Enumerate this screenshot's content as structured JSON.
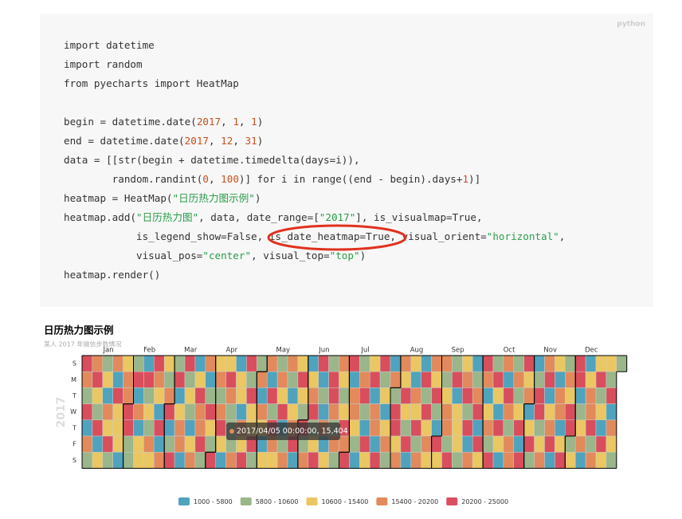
{
  "code": {
    "language": "python",
    "blocks": [
      [
        "import datetime",
        "import random",
        "from pyecharts import HeatMap"
      ],
      [
        "begin = datetime.date(2017, 1, 1)",
        "end = datetime.date(2017, 12, 31)",
        "data = [[str(begin + datetime.timedelta(days=i)),",
        "        random.randint(0, 100)] for i in range((end - begin).days+1)]",
        "heatmap = HeatMap(\"日历热力图示例\")",
        "heatmap.add(\"日历热力图\", data, date_range=[\"2017\"], is_visualmap=True,",
        "            is_legend_show=False, is_date_heatmap=True, visual_orient=\"horizontal\",",
        "            visual_pos=\"center\", visual_top=\"top\")",
        "heatmap.render()"
      ]
    ]
  },
  "chart_data": {
    "type": "calendar-heatmap",
    "title": "日历热力图示例",
    "subtitle": "某人 2017 年微信步数情况",
    "year_label": "2017",
    "months": [
      "Jan",
      "Feb",
      "Mar",
      "Apr",
      "May",
      "Jun",
      "Jul",
      "Aug",
      "Sep",
      "Oct",
      "Nov",
      "Dec"
    ],
    "days": [
      "S",
      "M",
      "T",
      "W",
      "T",
      "F",
      "S"
    ],
    "tooltip": "2017/04/05 00:00:00, 15,404",
    "pieces": [
      {
        "label": "1000 - 5800",
        "min": 1000,
        "max": 5800,
        "color": "#4fa3bd"
      },
      {
        "label": "5800 - 10600",
        "min": 5800,
        "max": 10600,
        "color": "#9ab68a"
      },
      {
        "label": "10600 - 15400",
        "min": 10600,
        "max": 15400,
        "color": "#eac763"
      },
      {
        "label": "15400 - 20200",
        "min": 15400,
        "max": 20200,
        "color": "#e28a5c"
      },
      {
        "label": "20200 - 25000",
        "min": 20200,
        "max": 25000,
        "color": "#d94e5d"
      }
    ],
    "values": [
      21840,
      19230,
      9120,
      23410,
      4230,
      16220,
      8710,
      18420,
      22310,
      13750,
      8230,
      22930,
      3550,
      12610,
      6540,
      11250,
      2450,
      19870,
      13480,
      24120,
      7520,
      17910,
      5240,
      20340,
      10830,
      12840,
      13960,
      2890,
      12320,
      15480,
      16890,
      21350,
      21220,
      9670,
      6110,
      9250,
      20990,
      3770,
      15530,
      4860,
      14370,
      11710,
      3110,
      22150,
      8460,
      11970,
      7390,
      16830,
      13020,
      20660,
      18720,
      12230,
      4230,
      24440,
      2480,
      20180,
      13490,
      6370,
      17110,
      21780,
      3680,
      8930,
      23860,
      10210,
      24620,
      4980,
      13320,
      18790,
      19540,
      5180,
      23470,
      9640,
      14850,
      7680,
      2190,
      11480,
      17320,
      4790,
      13980,
      22060,
      17450,
      19210,
      20760,
      10470,
      18110,
      3240,
      9890,
      20520,
      14590,
      6840,
      22950,
      11760,
      16020,
      7240,
      15404,
      23330,
      12920,
      3650,
      14680,
      21490,
      19020,
      10520,
      5910,
      8160,
      16570,
      2730,
      12680,
      11430,
      3970,
      19660,
      14230,
      21040,
      22510,
      7920,
      23690,
      13810,
      12130,
      24880,
      6930,
      8390,
      17640,
      4160,
      18540,
      10980,
      2250,
      11870,
      15970,
      4530,
      20280,
      6620,
      24180,
      18030,
      14260,
      6050,
      19380,
      15160,
      22830,
      3420,
      10220,
      19450,
      19740,
      9210,
      2840,
      14060,
      17120,
      21670,
      4410,
      12570,
      24690,
      13290,
      8810,
      22080,
      7350,
      17990,
      3860,
      14720,
      18460,
      23960,
      9460,
      13190,
      22320,
      24210,
      5480,
      10360,
      4680,
      15870,
      3090,
      12450,
      9830,
      20230,
      24470,
      16730,
      6590,
      19820,
      8060,
      16380,
      11140,
      6280,
      12880,
      20960,
      15680,
      24730,
      21120,
      2920,
      17830,
      19990,
      13560,
      9010,
      3190,
      7060,
      16540,
      21950,
      9560,
      4960,
      23140,
      14840,
      13660,
      22720,
      3330,
      17690,
      18280,
      5660,
      20670,
      23980,
      8590,
      13640,
      2370,
      11330,
      16460,
      9340,
      5060,
      18890,
      9700,
      21230,
      24950,
      12020,
      15740,
      18660,
      14420,
      24280,
      10680,
      7610,
      20410,
      3370,
      11340,
      3730,
      16260,
      14980,
      21430,
      6460,
      19130,
      2120,
      21660,
      7820,
      24090,
      15010,
      17540,
      10880,
      16860,
      12460,
      20540,
      6760,
      3810,
      22890,
      13830,
      20090,
      6210,
      11610,
      18380,
      19550,
      9780,
      23060,
      9470,
      24360,
      4620,
      13460,
      12690,
      15020,
      6370,
      14140,
      17260,
      22670,
      8030,
      23810,
      2660,
      18560,
      4110,
      10040,
      18170,
      20870,
      5320,
      21780,
      11220,
      22990,
      15960,
      3540,
      12770,
      16380,
      7830,
      24520,
      7690,
      23540,
      14310,
      4890,
      20640,
      13370,
      2960,
      17230,
      2550,
      21310,
      19310,
      9040,
      18770,
      16140,
      10390,
      19060,
      8240,
      15350,
      24330,
      4290,
      21560,
      24760,
      13110,
      16620,
      3050,
      14470,
      20240,
      8540,
      3470,
      8880,
      23780,
      22370,
      6990,
      11580,
      17040,
      19270,
      22480,
      5330,
      11090,
      17350,
      24650,
      5740,
      13040,
      4380,
      19800,
      16410,
      2330,
      14640,
      22140,
      8020,
      16300,
      12560,
      24030,
      21690,
      9370,
      12140,
      21890,
      20860,
      2270,
      7210,
      10830,
      17910,
      3980,
      5610,
      11840,
      17280,
      18940,
      23320,
      6060,
      19980,
      15260,
      24240,
      9960,
      13270,
      4570,
      22540,
      15180,
      11580,
      7480,
      22860,
      5590,
      18920,
      12320,
      8690,
      8140
    ]
  }
}
